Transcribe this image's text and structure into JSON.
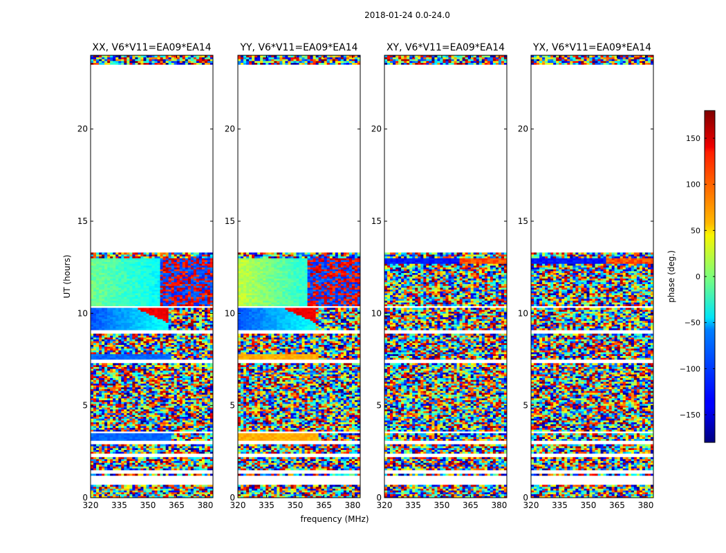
{
  "chart_data": {
    "type": "heatmap",
    "suptitle": "2018-01-24 0.0-24.0",
    "xlabel": "frequency (MHz)",
    "ylabel": "UT (hours)",
    "xlim": [
      320,
      384
    ],
    "ylim": [
      0,
      24
    ],
    "xticks": [
      320,
      335,
      350,
      365,
      380
    ],
    "yticks": [
      0,
      5,
      10,
      15,
      20
    ],
    "colorbar": {
      "label": "phase (deg.)",
      "colormap": "jet",
      "vmin": -180,
      "vmax": 180,
      "ticks": [
        -150,
        -100,
        -50,
        0,
        50,
        100,
        150
      ],
      "ticklabels": [
        "−150",
        "−100",
        "−50",
        "0",
        "50",
        "100",
        "150"
      ]
    },
    "panels": [
      {
        "title": "XX, V6*V11=EA09*EA14",
        "pol": "XX"
      },
      {
        "title": "YY, V6*V11=EA09*EA14",
        "pol": "YY"
      },
      {
        "title": "XY, V6*V11=EA09*EA14",
        "pol": "XY"
      },
      {
        "title": "YX, V6*V11=EA09*EA14",
        "pol": "YX"
      }
    ],
    "data_coverage_hours": [
      [
        0.0,
        0.7
      ],
      [
        1.2,
        1.3
      ],
      [
        1.55,
        2.25
      ],
      [
        2.4,
        2.9
      ],
      [
        3.1,
        3.5
      ],
      [
        3.6,
        7.3
      ],
      [
        7.5,
        8.9
      ],
      [
        9.1,
        10.3
      ],
      [
        10.4,
        13.3
      ],
      [
        23.5,
        24.0
      ]
    ]
  }
}
